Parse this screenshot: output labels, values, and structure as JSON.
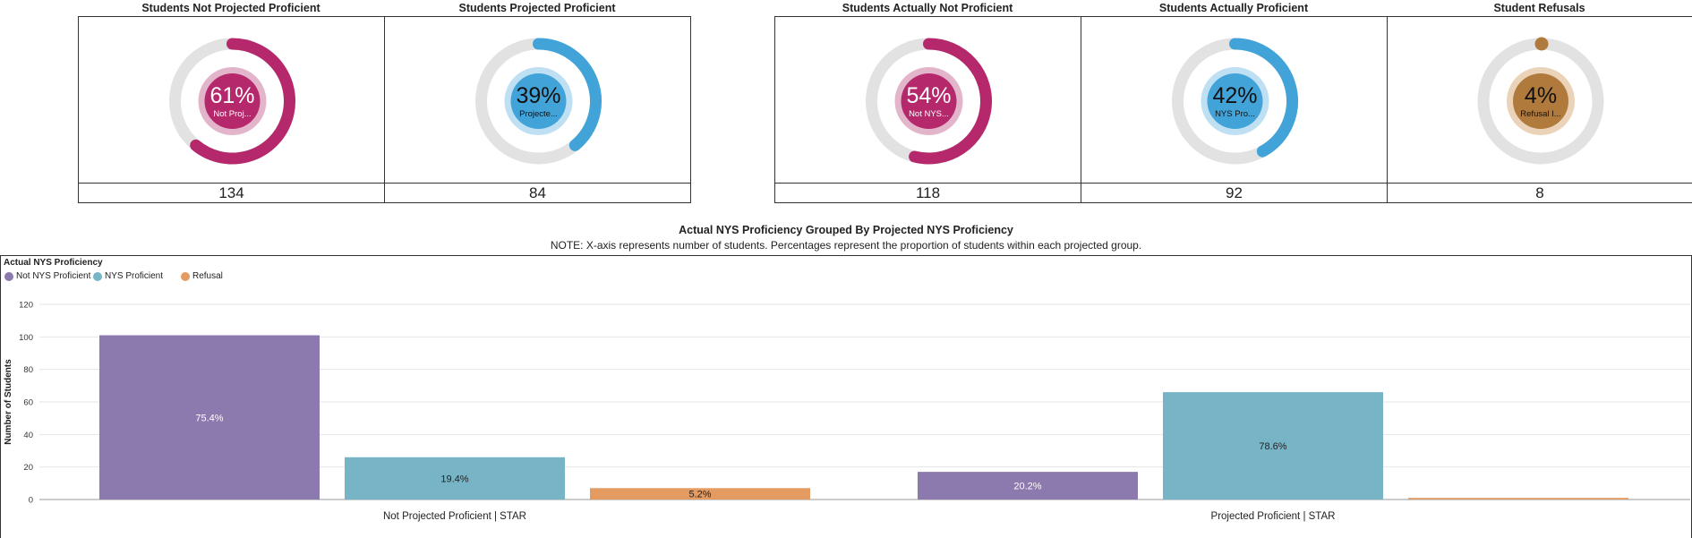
{
  "kpis": [
    {
      "title": "Students Not Projected Proficient",
      "percent": 61,
      "percent_label": "61%",
      "inner_label": "Not Proj...",
      "count": "134",
      "color": "#b5286b",
      "inner_light": "#e3b5cb"
    },
    {
      "title": "Students Projected Proficient",
      "percent": 39,
      "percent_label": "39%",
      "inner_label": "Projecte...",
      "count": "84",
      "color": "#41a3d8",
      "inner_light": "#bfe0f3"
    },
    {
      "title": "Students Actually Not Proficient",
      "percent": 54,
      "percent_label": "54%",
      "inner_label": "Not NYS...",
      "count": "118",
      "color": "#b5286b",
      "inner_light": "#e3b5cb"
    },
    {
      "title": "Students Actually Proficient",
      "percent": 42,
      "percent_label": "42%",
      "inner_label": "NYS Pro...",
      "count": "92",
      "color": "#41a3d8",
      "inner_light": "#bfe0f3"
    },
    {
      "title": "Student Refusals",
      "percent": 4,
      "percent_label": "4%",
      "inner_label": "Refusal I...",
      "count": "8",
      "color": "#b07a3c",
      "inner_light": "#ead3b8"
    }
  ],
  "chart_data": {
    "type": "bar",
    "title": "Actual NYS Proficiency Grouped By Projected NYS Proficiency",
    "subtitle": "NOTE: X-axis represents number of students.  Percentages represent the proportion of students within each projected group.",
    "ylabel": "Number of Students",
    "xlabel": "",
    "ylim": [
      0,
      120
    ],
    "yticks": [
      0,
      20,
      40,
      60,
      80,
      100,
      120
    ],
    "grid": true,
    "legend_title": "Actual NYS Proficiency",
    "legend_position": "top-left",
    "categories": [
      "Not Projected Proficient | STAR",
      "Projected Proficient | STAR"
    ],
    "series": [
      {
        "name": "Not NYS Proficient",
        "color": "#8c79ad",
        "values": [
          101,
          17
        ],
        "labels": [
          "75.4%",
          "20.2%"
        ]
      },
      {
        "name": "NYS Proficient",
        "color": "#76b4c6",
        "values": [
          26,
          66
        ],
        "labels": [
          "19.4%",
          "78.6%"
        ]
      },
      {
        "name": "Refusal",
        "color": "#e39b62",
        "values": [
          7,
          1
        ],
        "labels": [
          "5.2%",
          ""
        ]
      }
    ]
  }
}
